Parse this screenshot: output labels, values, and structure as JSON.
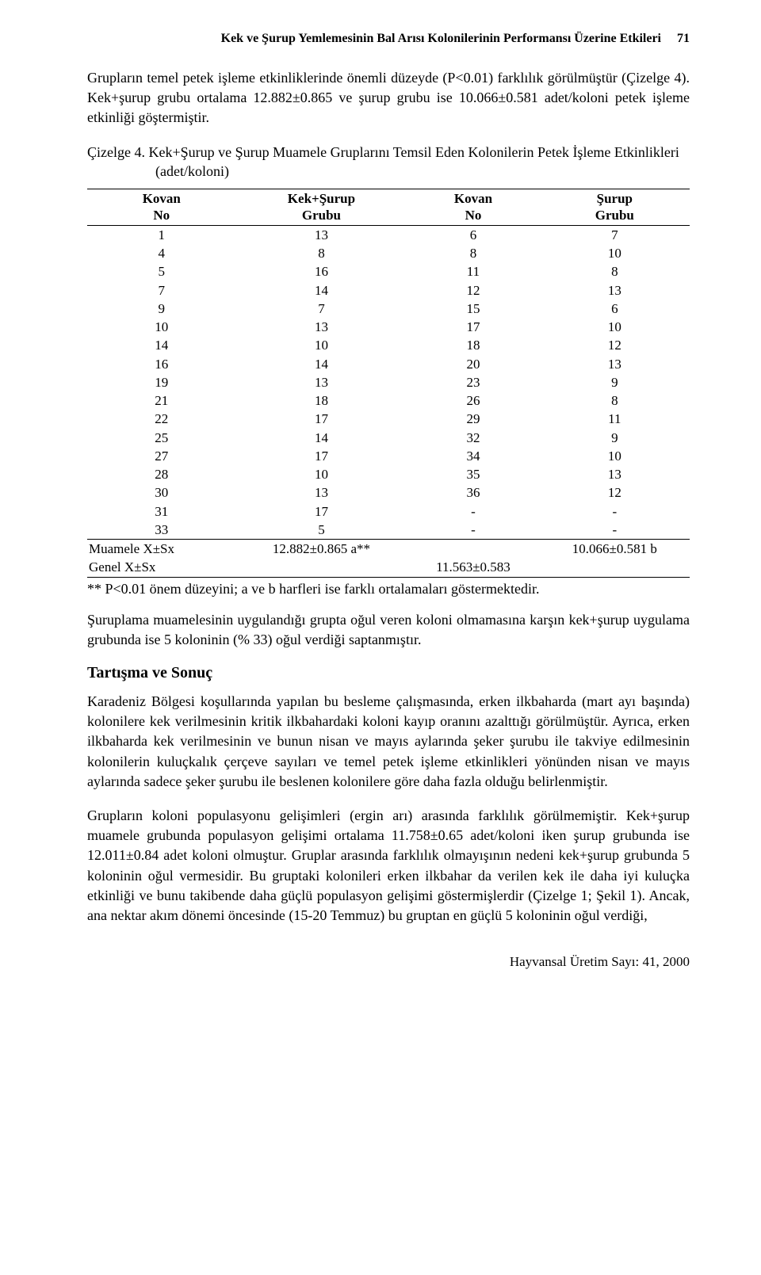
{
  "running_header": {
    "title": "Kek ve Şurup Yemlemesinin Bal Arısı Kolonilerinin Performansı Üzerine Etkileri",
    "page_number": "71"
  },
  "para1": "Grupların temel petek işleme etkinliklerinde önemli düzeyde (P<0.01) farklılık görülmüştür (Çizelge 4). Kek+şurup grubu ortalama 12.882±0.865 ve şurup grubu ise 10.066±0.581 adet/koloni petek işleme etkinliği göştermiştir.",
  "table4": {
    "caption": "Çizelge 4. Kek+Şurup ve Şurup Muamele Gruplarını Temsil Eden Kolonilerin Petek İşleme Etkinlikleri (adet/koloni)",
    "headers": {
      "c1_top": "Kovan",
      "c1_bot": "No",
      "c2_top": "Kek+Şurup",
      "c2_bot": "Grubu",
      "c3_top": "Kovan",
      "c3_bot": "No",
      "c4_top": "Şurup",
      "c4_bot": "Grubu"
    },
    "rows": [
      [
        "1",
        "13",
        "6",
        "7"
      ],
      [
        "4",
        "8",
        "8",
        "10"
      ],
      [
        "5",
        "16",
        "11",
        "8"
      ],
      [
        "7",
        "14",
        "12",
        "13"
      ],
      [
        "9",
        "7",
        "15",
        "6"
      ],
      [
        "10",
        "13",
        "17",
        "10"
      ],
      [
        "14",
        "10",
        "18",
        "12"
      ],
      [
        "16",
        "14",
        "20",
        "13"
      ],
      [
        "19",
        "13",
        "23",
        "9"
      ],
      [
        "21",
        "18",
        "26",
        "8"
      ],
      [
        "22",
        "17",
        "29",
        "11"
      ],
      [
        "25",
        "14",
        "32",
        "9"
      ],
      [
        "27",
        "17",
        "34",
        "10"
      ],
      [
        "28",
        "10",
        "35",
        "13"
      ],
      [
        "30",
        "13",
        "36",
        "12"
      ],
      [
        "31",
        "17",
        "-",
        "-"
      ],
      [
        "33",
        "5",
        "-",
        "-"
      ]
    ],
    "muamele_label": "Muamele X±Sx",
    "muamele_left": "12.882±0.865  a**",
    "muamele_right": "10.066±0.581  b",
    "genel_label": "Genel X±Sx",
    "genel_value": "11.563±0.583",
    "footnote": "** P<0.01 önem düzeyini; a ve b harfleri ise farklı ortalamaları göstermektedir."
  },
  "para2": "Şuruplama muamelesinin uygulandığı grupta oğul veren koloni olmamasına karşın kek+şurup uygulama grubunda ise 5 koloninin (% 33) oğul verdiği saptanmıştır.",
  "section_heading": "Tartışma ve Sonuç",
  "para3": "Karadeniz Bölgesi koşullarında yapılan bu besleme çalışmasında, erken ilkbaharda (mart ayı başında) kolonilere kek verilmesinin kritik ilkbahardaki koloni kayıp oranını azalttığı görülmüştür. Ayrıca, erken ilkbaharda kek verilmesinin ve bunun nisan ve mayıs aylarında şeker şurubu ile takviye edilmesinin kolonilerin kuluçkalık çerçeve sayıları ve temel petek işleme etkinlikleri yönünden nisan ve mayıs aylarında sadece şeker şurubu ile beslenen kolonilere göre daha fazla olduğu belirlenmiştir.",
  "para4": "Grupların koloni populasyonu gelişimleri (ergin arı) arasında farklılık görülmemiştir. Kek+şurup muamele grubunda populasyon gelişimi ortalama 11.758±0.65 adet/koloni iken şurup grubunda ise 12.011±0.84 adet koloni olmuştur. Gruplar arasında farklılık olmayışının nedeni kek+şurup grubunda 5 koloninin oğul vermesidir. Bu gruptaki kolonileri erken ilkbahar da verilen kek ile daha iyi kuluçka etkinliği ve bunu takibende daha güçlü populasyon gelişimi göstermişlerdir (Çizelge 1; Şekil 1). Ancak, ana nektar akım dönemi öncesinde (15-20 Temmuz) bu gruptan en güçlü 5 koloninin oğul verdiği,",
  "footer": "Hayvansal Üretim Sayı: 41, 2000"
}
